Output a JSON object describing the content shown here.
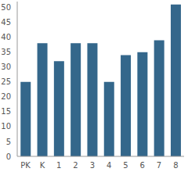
{
  "chart_data": {
    "type": "bar",
    "categories": [
      "PK",
      "K",
      "1",
      "2",
      "3",
      "4",
      "5",
      "6",
      "7",
      "8"
    ],
    "values": [
      25,
      38,
      32,
      38,
      38,
      25,
      34,
      35,
      39,
      51
    ],
    "color": "#34678b",
    "ylim": [
      0,
      52
    ],
    "yticks": [
      0,
      5,
      10,
      15,
      20,
      25,
      30,
      35,
      40,
      45,
      50
    ],
    "grid": false
  }
}
